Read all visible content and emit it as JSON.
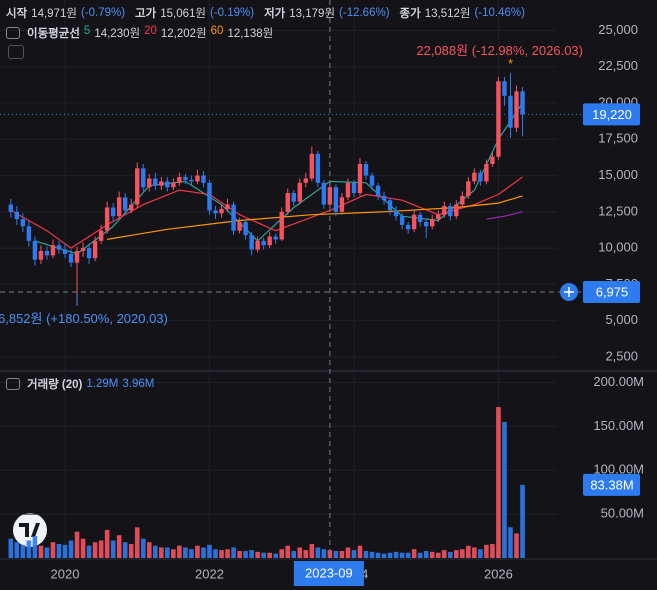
{
  "legend": {
    "ohlc": [
      {
        "label": "시작",
        "value": "14,971원",
        "change": "(-0.79%)"
      },
      {
        "label": "고가",
        "value": "15,061원",
        "change": "(-0.19%)"
      },
      {
        "label": "저가",
        "value": "13,179원",
        "change": "(-12.66%)"
      },
      {
        "label": "종가",
        "value": "13,512원",
        "change": "(-10.46%)"
      }
    ],
    "ma_title": "이동평균선"
  },
  "chart_data": {
    "type": "candlestick",
    "up_color": "#f7525f",
    "down_color": "#2e7bf0",
    "x": [
      "2019-04",
      "2019-05",
      "2019-06",
      "2019-07",
      "2019-08",
      "2019-09",
      "2019-10",
      "2019-11",
      "2019-12",
      "2020-01",
      "2020-02",
      "2020-03",
      "2020-04",
      "2020-05",
      "2020-06",
      "2020-07",
      "2020-08",
      "2020-09",
      "2020-10",
      "2020-11",
      "2020-12",
      "2021-01",
      "2021-02",
      "2021-03",
      "2021-04",
      "2021-05",
      "2021-06",
      "2021-07",
      "2021-08",
      "2021-09",
      "2021-10",
      "2021-11",
      "2021-12",
      "2022-01",
      "2022-02",
      "2022-03",
      "2022-04",
      "2022-05",
      "2022-06",
      "2022-07",
      "2022-08",
      "2022-09",
      "2022-10",
      "2022-11",
      "2022-12",
      "2023-01",
      "2023-02",
      "2023-03",
      "2023-04",
      "2023-05",
      "2023-06",
      "2023-07",
      "2023-08",
      "2023-09",
      "2023-10",
      "2023-11",
      "2023-12",
      "2024-01",
      "2024-02",
      "2024-03",
      "2024-04",
      "2024-05",
      "2024-06",
      "2024-07",
      "2024-08",
      "2024-09",
      "2024-10",
      "2024-11",
      "2024-12",
      "2025-01",
      "2025-02",
      "2025-03",
      "2025-04",
      "2025-05",
      "2025-06",
      "2025-07",
      "2025-08",
      "2025-09",
      "2025-10",
      "2025-11",
      "2025-12",
      "2026-01",
      "2026-02",
      "2026-03",
      "2026-04",
      "2026-05"
    ],
    "ohlc": [
      [
        13000,
        13400,
        12100,
        12500
      ],
      [
        12500,
        12900,
        11600,
        12000
      ],
      [
        12000,
        12400,
        11100,
        11500
      ],
      [
        11500,
        11900,
        10100,
        10500
      ],
      [
        10500,
        10800,
        8800,
        9200
      ],
      [
        9200,
        10200,
        8900,
        9800
      ],
      [
        9800,
        10100,
        9200,
        9500
      ],
      [
        9500,
        10600,
        9300,
        10200
      ],
      [
        10200,
        10500,
        9600,
        9900
      ],
      [
        9900,
        10300,
        9300,
        9600
      ],
      [
        9600,
        9900,
        8700,
        9000
      ],
      [
        9000,
        10100,
        6852,
        9800
      ],
      [
        9800,
        10400,
        9400,
        10000
      ],
      [
        10000,
        10300,
        8900,
        9300
      ],
      [
        9300,
        10800,
        9100,
        10500
      ],
      [
        10500,
        11600,
        10300,
        11200
      ],
      [
        11200,
        13200,
        11000,
        12800
      ],
      [
        12800,
        13100,
        11800,
        12200
      ],
      [
        12200,
        13900,
        12000,
        13500
      ],
      [
        13500,
        13800,
        12300,
        12600
      ],
      [
        12600,
        13400,
        12400,
        13000
      ],
      [
        13000,
        15900,
        12800,
        15500
      ],
      [
        15500,
        15800,
        13900,
        14200
      ],
      [
        14200,
        15100,
        13900,
        14800
      ],
      [
        14800,
        15200,
        14000,
        14300
      ],
      [
        14300,
        14900,
        14000,
        14600
      ],
      [
        14600,
        14900,
        13900,
        14200
      ],
      [
        14200,
        14800,
        14000,
        14500
      ],
      [
        14500,
        15200,
        14300,
        14900
      ],
      [
        14900,
        15100,
        14400,
        14700
      ],
      [
        14700,
        15000,
        14300,
        14600
      ],
      [
        14600,
        15400,
        14400,
        15000
      ],
      [
        15000,
        15300,
        14200,
        14500
      ],
      [
        14500,
        14700,
        12300,
        12600
      ],
      [
        12600,
        12900,
        12000,
        12400
      ],
      [
        12400,
        13000,
        12100,
        12700
      ],
      [
        12700,
        13400,
        12500,
        13000
      ],
      [
        13000,
        13200,
        10900,
        11200
      ],
      [
        11200,
        12100,
        11000,
        11800
      ],
      [
        11800,
        12000,
        10600,
        10900
      ],
      [
        10900,
        11100,
        9500,
        9900
      ],
      [
        9900,
        10800,
        9700,
        10500
      ],
      [
        10500,
        10700,
        9900,
        10200
      ],
      [
        10200,
        11100,
        10000,
        10800
      ],
      [
        10800,
        11000,
        10300,
        10600
      ],
      [
        10600,
        12800,
        10500,
        12500
      ],
      [
        12500,
        14100,
        12300,
        13800
      ],
      [
        13800,
        14000,
        12900,
        13200
      ],
      [
        13200,
        14800,
        13000,
        14500
      ],
      [
        14500,
        15200,
        14200,
        14800
      ],
      [
        14800,
        17000,
        14600,
        16500
      ],
      [
        16500,
        16700,
        14200,
        14500
      ],
      [
        14500,
        14700,
        12700,
        13000
      ],
      [
        13000,
        14500,
        12800,
        14200
      ],
      [
        14200,
        14400,
        12200,
        12500
      ],
      [
        12500,
        13800,
        12300,
        13500
      ],
      [
        13500,
        14800,
        13300,
        14500
      ],
      [
        14500,
        14700,
        13500,
        13800
      ],
      [
        13800,
        16200,
        13600,
        15800
      ],
      [
        15800,
        16000,
        14700,
        15000
      ],
      [
        15000,
        15200,
        14000,
        14300
      ],
      [
        14300,
        14500,
        13300,
        13600
      ],
      [
        13600,
        13900,
        13000,
        13300
      ],
      [
        13300,
        13500,
        12300,
        12600
      ],
      [
        12600,
        12900,
        11900,
        12200
      ],
      [
        12200,
        12400,
        11300,
        11600
      ],
      [
        11600,
        11800,
        11000,
        11300
      ],
      [
        11300,
        12600,
        11100,
        12300
      ],
      [
        12300,
        12500,
        11500,
        11800
      ],
      [
        11800,
        12000,
        10700,
        11500
      ],
      [
        11500,
        12300,
        11300,
        12000
      ],
      [
        12000,
        12600,
        11800,
        12300
      ],
      [
        12300,
        13200,
        12100,
        12900
      ],
      [
        12900,
        13100,
        11900,
        12200
      ],
      [
        12200,
        13300,
        12000,
        13000
      ],
      [
        13000,
        13900,
        12800,
        13600
      ],
      [
        13600,
        14900,
        13400,
        14600
      ],
      [
        14600,
        15500,
        14400,
        15200
      ],
      [
        15200,
        15400,
        14300,
        14600
      ],
      [
        14600,
        16100,
        14400,
        15800
      ],
      [
        15800,
        16600,
        15600,
        16300
      ],
      [
        16300,
        21800,
        16100,
        21500
      ],
      [
        21500,
        21800,
        19800,
        20500
      ],
      [
        20500,
        22088,
        17600,
        18300
      ],
      [
        18300,
        21200,
        18000,
        20800
      ],
      [
        20800,
        21100,
        17700,
        19220
      ]
    ],
    "ylim": [
      1600,
      27100
    ],
    "yticks": [
      {
        "value": 2500,
        "label": "2,500"
      },
      {
        "value": 5000,
        "label": "5,000"
      },
      {
        "value": 7500,
        "label": "7,500"
      },
      {
        "value": 10000,
        "label": "10,000"
      },
      {
        "value": 12500,
        "label": "12,500"
      },
      {
        "value": 15000,
        "label": "15,000"
      },
      {
        "value": 17500,
        "label": "17,500"
      },
      {
        "value": 20000,
        "label": "20,000"
      },
      {
        "value": 22500,
        "label": "22,500"
      },
      {
        "value": 25000,
        "label": "25,000"
      }
    ],
    "xticks": [
      {
        "value": "2020-01",
        "label": "2020"
      },
      {
        "value": "2022-01",
        "label": "2022"
      },
      {
        "value": "2024-01",
        "label": "2024"
      },
      {
        "value": "2026-01",
        "label": "2026"
      }
    ],
    "grid": true,
    "moving_averages": [
      {
        "name": "5",
        "value_label": "14,230원",
        "color": "#26a69a",
        "x": [
          "2019-08",
          "2020-03",
          "2020-09",
          "2021-03",
          "2021-09",
          "2022-03",
          "2022-09",
          "2023-03",
          "2023-09",
          "2024-03",
          "2024-09",
          "2025-03",
          "2025-09",
          "2026-01",
          "2026-05"
        ],
        "values": [
          10500,
          9600,
          11500,
          14300,
          14600,
          13000,
          10500,
          12800,
          14600,
          14500,
          12200,
          11900,
          14000,
          17500,
          20000
        ]
      },
      {
        "name": "20",
        "value_label": "12,202원",
        "color": "#f23645",
        "x": [
          "2019-04",
          "2019-10",
          "2020-02",
          "2020-08",
          "2021-02",
          "2021-08",
          "2022-01",
          "2022-06",
          "2022-12",
          "2023-09",
          "2024-03",
          "2024-09",
          "2025-03",
          "2025-09",
          "2026-01",
          "2026-05"
        ],
        "values": [
          12600,
          11200,
          10000,
          11600,
          13000,
          14000,
          13700,
          12300,
          11200,
          12600,
          13700,
          13300,
          12300,
          13000,
          13700,
          14900
        ]
      },
      {
        "name": "60",
        "value_label": "12,138원",
        "color": "#ff9800",
        "x": [
          "2020-08",
          "2021-06",
          "2022-06",
          "2023-06",
          "2024-06",
          "2025-06",
          "2026-01",
          "2026-05"
        ],
        "values": [
          10600,
          11300,
          11900,
          12300,
          12500,
          12800,
          13100,
          13600
        ]
      },
      {
        "color": "#9c27b0",
        "x": [
          "2025-11",
          "2026-02",
          "2026-05"
        ],
        "values": [
          12000,
          12200,
          12500
        ]
      }
    ],
    "annotations": [
      {
        "x": "2026-03",
        "value": 22088,
        "label": "22,088원 (-12.98%, 2026.03)",
        "color": "#f7525f"
      },
      {
        "x": "2020-03",
        "value": 6852,
        "label": "6,852원 (+180.50%, 2020.03)",
        "color": "#4d8ff5"
      }
    ],
    "price_lines": [
      {
        "value": 19220,
        "label": "19,220",
        "color": "#2e7bf0"
      },
      {
        "value": 6975,
        "label": "6,975",
        "color": "#2e7bf0"
      }
    ],
    "crosshair": {
      "value": "2023-09",
      "label": "2023-09"
    },
    "volume": {
      "title": "거래량 (20)",
      "legend_values": [
        "1.29M",
        "3.96M"
      ],
      "values": [
        22,
        18,
        15,
        20,
        25,
        14,
        12,
        18,
        16,
        15,
        20,
        30,
        22,
        14,
        18,
        20,
        32,
        20,
        26,
        18,
        16,
        35,
        22,
        18,
        14,
        12,
        12,
        10,
        14,
        12,
        10,
        14,
        12,
        15,
        10,
        9,
        10,
        12,
        8,
        8,
        9,
        7,
        6,
        6,
        5,
        10,
        14,
        8,
        12,
        9,
        16,
        12,
        10,
        9,
        8,
        8,
        12,
        9,
        14,
        8,
        7,
        6,
        5,
        6,
        7,
        6,
        6,
        10,
        6,
        8,
        7,
        6,
        9,
        7,
        9,
        10,
        14,
        12,
        10,
        15,
        16,
        172,
        155,
        35,
        28,
        83.38
      ],
      "ylim": [
        0,
        212
      ],
      "yticks": [
        {
          "value": 50,
          "label": "50.00M"
        },
        {
          "value": 100,
          "label": "100.00M"
        },
        {
          "value": 150,
          "label": "150.00M"
        },
        {
          "value": 200,
          "label": "200.00M"
        }
      ],
      "last": {
        "value": 83.38,
        "label": "83.38M"
      }
    }
  }
}
